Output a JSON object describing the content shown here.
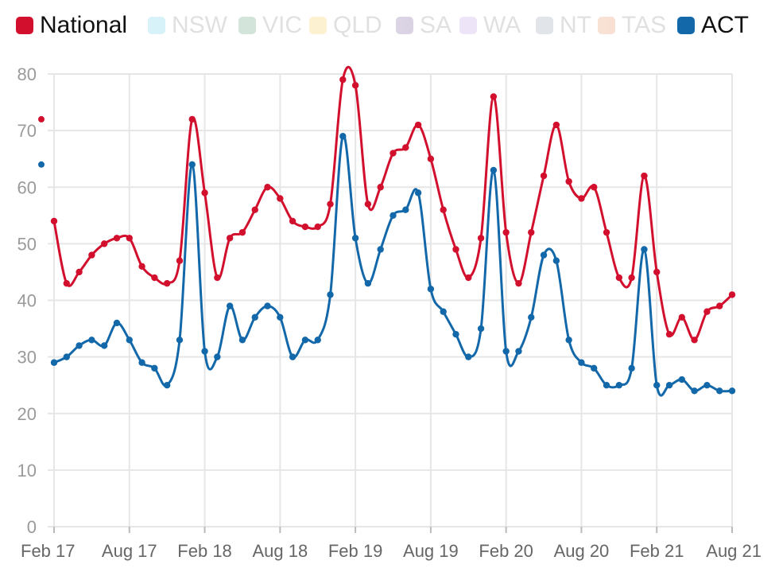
{
  "legend": {
    "items": [
      {
        "key": "national",
        "label": "National",
        "color": "#d2102e",
        "active": true
      },
      {
        "key": "nsw",
        "label": "NSW",
        "color": "#4cc9e0",
        "active": false
      },
      {
        "key": "vic",
        "label": "VIC",
        "color": "#3a8a5a",
        "active": false
      },
      {
        "key": "qld",
        "label": "QLD",
        "color": "#f2c230",
        "active": false
      },
      {
        "key": "sa",
        "label": "SA",
        "color": "#5a3a8a",
        "active": false
      },
      {
        "key": "wa",
        "label": "WA",
        "color": "#b38ae0",
        "active": false
      },
      {
        "key": "nt",
        "label": "NT",
        "color": "#7a8a99",
        "active": false
      },
      {
        "key": "tas",
        "label": "TAS",
        "color": "#e07a3a",
        "active": false
      },
      {
        "key": "act",
        "label": "ACT",
        "color": "#1368aa",
        "active": true
      }
    ]
  },
  "chart_data": {
    "type": "line",
    "title": "",
    "xlabel": "",
    "ylabel": "",
    "ylim": [
      0,
      80
    ],
    "yticks": [
      0,
      10,
      20,
      30,
      40,
      50,
      60,
      70,
      80
    ],
    "ytick_labels": [
      "0",
      "10",
      "20",
      "30",
      "40",
      "50",
      "60",
      "70",
      "80"
    ],
    "xticks": [
      "Feb 17",
      "Aug 17",
      "Feb 18",
      "Aug 18",
      "Feb 19",
      "Aug 19",
      "Feb 20",
      "Aug 20",
      "Feb 21",
      "Aug 21"
    ],
    "x_start": "Feb 17",
    "x_end": "Aug 21",
    "grid": true,
    "legend_position": "top",
    "series": [
      {
        "name": "National",
        "color": "#d2102e",
        "values": [
          54,
          43,
          45,
          48,
          50,
          51,
          51,
          46,
          44,
          43,
          47,
          72,
          59,
          44,
          51,
          52,
          56,
          60,
          58,
          54,
          53,
          53,
          57,
          79,
          78,
          57,
          60,
          66,
          67,
          71,
          65,
          56,
          49,
          44,
          51,
          76,
          52,
          43,
          52,
          62,
          71,
          61,
          58,
          60,
          52,
          44,
          44,
          62,
          45,
          34,
          37,
          33,
          38,
          39,
          41
        ]
      },
      {
        "name": "ACT",
        "color": "#1368aa",
        "values": [
          29,
          30,
          32,
          33,
          32,
          36,
          33,
          29,
          28,
          25,
          33,
          64,
          31,
          30,
          39,
          33,
          37,
          39,
          37,
          30,
          33,
          33,
          41,
          69,
          51,
          43,
          49,
          55,
          56,
          59,
          42,
          38,
          34,
          30,
          35,
          63,
          31,
          31,
          37,
          48,
          47,
          33,
          29,
          28,
          25,
          25,
          28,
          49,
          25,
          25,
          26,
          24,
          25,
          24,
          24
        ]
      }
    ]
  }
}
